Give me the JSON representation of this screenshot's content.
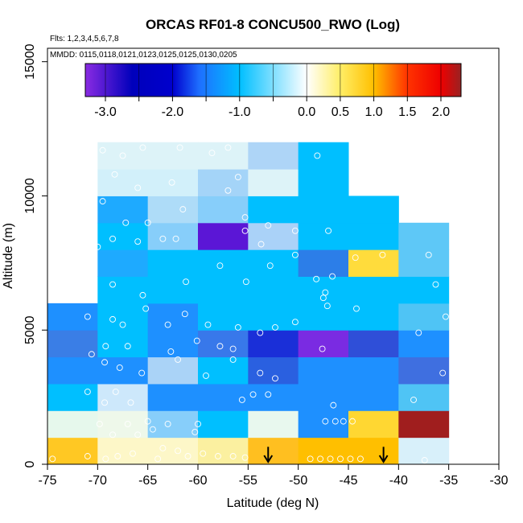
{
  "chart_data": {
    "type": "heatmap",
    "title": "ORCAS RF01-8 CONCU500_RWO (Log)",
    "flights_label": "Flts: 1,2,3,4,5,6,7,8",
    "dates_label": "MMDD: 0115,0118,0121,0123,0125,0125,0130,0205",
    "xlabel": "Latitude (deg N)",
    "ylabel": "Altitude (m)",
    "xlim": [
      -75,
      -30
    ],
    "ylim": [
      0,
      15500
    ],
    "x_ticks": [
      -75,
      -70,
      -65,
      -60,
      -55,
      -50,
      -45,
      -40,
      -35,
      -30
    ],
    "x_tick_labels": [
      "-75",
      "-70",
      "-65",
      "-60",
      "-55",
      "-50",
      "-45",
      "-40",
      "-35",
      "-30"
    ],
    "y_ticks": [
      0,
      5000,
      10000,
      15000
    ],
    "y_tick_labels": [
      "0",
      "5000",
      "10000",
      "15000"
    ],
    "colorbar": {
      "range": [
        -3.3,
        2.3
      ],
      "ticks": [
        -3.0,
        -2.0,
        -1.0,
        0.0,
        0.5,
        1.0,
        1.5,
        2.0
      ],
      "tick_labels": [
        "-3.0",
        "-2.0",
        "-1.0",
        "0.0",
        "0.5",
        "1.0",
        "1.5",
        "2.0"
      ],
      "stops": [
        {
          "v": -3.3,
          "c": "#8a2be2"
        },
        {
          "v": -2.6,
          "c": "#0000bb"
        },
        {
          "v": -2.0,
          "c": "#0000cd"
        },
        {
          "v": -1.6,
          "c": "#1e6fff"
        },
        {
          "v": -1.0,
          "c": "#00bfff"
        },
        {
          "v": -0.5,
          "c": "#7fdfff"
        },
        {
          "v": 0.0,
          "c": "#ffffff"
        },
        {
          "v": 0.5,
          "c": "#ffee66"
        },
        {
          "v": 1.0,
          "c": "#ffbf00"
        },
        {
          "v": 1.5,
          "c": "#ff3300"
        },
        {
          "v": 2.0,
          "c": "#ee0000"
        },
        {
          "v": 2.3,
          "c": "#992222"
        }
      ]
    },
    "bin_size": {
      "lat": 5,
      "alt": 1000
    },
    "cells": [
      {
        "lat": -75,
        "alt": 0,
        "color": "#ffc823"
      },
      {
        "lat": -75,
        "alt": 1000,
        "color": "#e6f8ec"
      },
      {
        "lat": -75,
        "alt": 2000,
        "color": "#00bfff"
      },
      {
        "lat": -75,
        "alt": 3000,
        "color": "#1e90ff"
      },
      {
        "lat": -75,
        "alt": 4000,
        "color": "#3378e8"
      },
      {
        "lat": -75,
        "alt": 5000,
        "color": "#1e90ff"
      },
      {
        "lat": -70,
        "alt": 0,
        "color": "#fdf7c8"
      },
      {
        "lat": -70,
        "alt": 1000,
        "color": "#87cefa"
      },
      {
        "lat": -70,
        "alt": 2000,
        "color": "#cde8fb"
      },
      {
        "lat": -70,
        "alt": 3000,
        "color": "#1e90ff"
      },
      {
        "lat": -70,
        "alt": 4000,
        "color": "#00bfff"
      },
      {
        "lat": -70,
        "alt": 5000,
        "color": "#00bfff"
      },
      {
        "lat": -70,
        "alt": 6000,
        "color": "#00bfff"
      },
      {
        "lat": -70,
        "alt": 7000,
        "color": "#1eaaff"
      },
      {
        "lat": -70,
        "alt": 8000,
        "color": "#00bfff"
      },
      {
        "lat": -70,
        "alt": 9000,
        "color": "#1eaaff"
      },
      {
        "lat": -70,
        "alt": 10000,
        "color": "#d2f0fa"
      },
      {
        "lat": -70,
        "alt": 11000,
        "color": "#ddf3f8"
      },
      {
        "lat": -65,
        "alt": 0,
        "color": "#fdf7c8"
      },
      {
        "lat": -65,
        "alt": 1000,
        "color": "#33b5f5"
      },
      {
        "lat": -65,
        "alt": 2000,
        "color": "#1e90ff"
      },
      {
        "lat": -65,
        "alt": 3000,
        "color": "#1e90ff"
      },
      {
        "lat": -65,
        "alt": 4000,
        "color": "#2a88f2"
      },
      {
        "lat": -65,
        "alt": 5000,
        "color": "#1e90ff"
      },
      {
        "lat": -65,
        "alt": 6000,
        "color": "#00bfff"
      },
      {
        "lat": -65,
        "alt": 7000,
        "color": "#00bfff"
      },
      {
        "lat": -65,
        "alt": 8000,
        "color": "#87cefa"
      },
      {
        "lat": -65,
        "alt": 9000,
        "color": "#aedcf8"
      },
      {
        "lat": -65,
        "alt": 10000,
        "color": "#d2f0fa"
      },
      {
        "lat": -65,
        "alt": 11000,
        "color": "#ddf3f8"
      },
      {
        "lat": -60,
        "alt": 0,
        "color": "#fbf3a6"
      },
      {
        "lat": -60,
        "alt": 1000,
        "color": "#00bfff"
      },
      {
        "lat": -60,
        "alt": 2000,
        "color": "#1e90ff"
      },
      {
        "lat": -60,
        "alt": 3000,
        "color": "#aad3f7"
      },
      {
        "lat": -60,
        "alt": 4000,
        "color": "#00bfff"
      },
      {
        "lat": -60,
        "alt": 5000,
        "color": "#00bfff"
      },
      {
        "lat": -60,
        "alt": 6000,
        "color": "#00bfff"
      },
      {
        "lat": -60,
        "alt": 7000,
        "color": "#00bfff"
      },
      {
        "lat": -60,
        "alt": 8000,
        "color": "#87cefa"
      },
      {
        "lat": -60,
        "alt": 9000,
        "color": "#a4d4f8"
      },
      {
        "lat": -60,
        "alt": 10000,
        "color": "#ddf3f8"
      },
      {
        "lat": -60,
        "alt": 11000,
        "color": "#aed5f7"
      },
      {
        "lat": -55,
        "alt": 0,
        "color": "#ffbf00"
      },
      {
        "lat": -55,
        "alt": 1000,
        "color": "#e6f8ec"
      },
      {
        "lat": -55,
        "alt": 2000,
        "color": "#1e90ff"
      },
      {
        "lat": -55,
        "alt": 3000,
        "color": "#2c69e6"
      },
      {
        "lat": -55,
        "alt": 4000,
        "color": "#a7cff7"
      },
      {
        "lat": -55,
        "alt": 5000,
        "color": "#00bfff"
      },
      {
        "lat": -55,
        "alt": 6000,
        "color": "#00bfff"
      },
      {
        "lat": -55,
        "alt": 7000,
        "color": "#00bfff"
      },
      {
        "lat": -55,
        "alt": 8000,
        "color": "#b3daf8"
      },
      {
        "lat": -55,
        "alt": 9000,
        "color": "#00bfff"
      },
      {
        "lat": -55,
        "alt": 10000,
        "color": "#00bfff"
      },
      {
        "lat": -55,
        "alt": 11000,
        "color": "#00bfff"
      },
      {
        "lat": -50,
        "alt": 0,
        "color": "#ffbf00"
      },
      {
        "lat": -50,
        "alt": 1000,
        "color": "#1e90ff"
      },
      {
        "lat": -50,
        "alt": 2000,
        "color": "#1e90ff"
      },
      {
        "lat": -50,
        "alt": 3000,
        "color": "#1e90ff"
      },
      {
        "lat": -50,
        "alt": 4000,
        "color": "#00bfff"
      },
      {
        "lat": -50,
        "alt": 5000,
        "color": "#00bfff"
      },
      {
        "lat": -50,
        "alt": 6000,
        "color": "#00bfff"
      },
      {
        "lat": -50,
        "alt": 7000,
        "color": "#00bfff"
      },
      {
        "lat": -50,
        "alt": 8000,
        "color": "#00bfff"
      },
      {
        "lat": -50,
        "alt": 9000,
        "color": "#00bfff"
      },
      {
        "lat": -50,
        "alt": 10000,
        "color": "#00bfff"
      },
      {
        "lat": -50,
        "alt": 11000,
        "color": "#00bfff"
      },
      {
        "lat": -45,
        "alt": 0,
        "color": "#ffbf00"
      },
      {
        "lat": -45,
        "alt": 1000,
        "color": "#1e90ff"
      },
      {
        "lat": -45,
        "alt": 2000,
        "color": "#1e90ff"
      },
      {
        "lat": -45,
        "alt": 3000,
        "color": "#1e90ff"
      },
      {
        "lat": -45,
        "alt": 4000,
        "color": "#3070e0"
      },
      {
        "lat": -45,
        "alt": 5000,
        "color": "#00bfff"
      },
      {
        "lat": -45,
        "alt": 6000,
        "color": "#00bfff"
      },
      {
        "lat": -45,
        "alt": 7000,
        "color": "#00bfff"
      },
      {
        "lat": -45,
        "alt": 8000,
        "color": "#00bfff"
      },
      {
        "lat": -45,
        "alt": 9000,
        "color": "#00bfff"
      },
      {
        "lat": -40,
        "alt": 0,
        "color": "#d8f0fa"
      },
      {
        "lat": -40,
        "alt": 1000,
        "color": "#a01e1e"
      },
      {
        "lat": -40,
        "alt": 2000,
        "color": "#4fc4f5"
      },
      {
        "lat": -40,
        "alt": 3000,
        "color": "#3f6fe0"
      },
      {
        "lat": -40,
        "alt": 4000,
        "color": "#1e90ff"
      },
      {
        "lat": -40,
        "alt": 5000,
        "color": "#4fc4f5"
      },
      {
        "lat": -40,
        "alt": 6000,
        "color": "#00bfff"
      },
      {
        "lat": -40,
        "alt": 7000,
        "color": "#5ec8f7"
      },
      {
        "lat": -40,
        "alt": 8000,
        "color": "#ffdc3c"
      }
    ],
    "overrides": [
      {
        "lat": -75,
        "alt": 4000,
        "color": "#3a7ee6"
      },
      {
        "lat": -70,
        "alt": 1000,
        "color": "#eef8ea"
      },
      {
        "lat": -65,
        "alt": 1000,
        "color": "#00bfff"
      },
      {
        "lat": -65,
        "alt": 1000,
        "color": "#87cefa"
      },
      {
        "lat": -60,
        "alt": 0,
        "color": "#fbf0a0"
      },
      {
        "lat": -55,
        "alt": 0,
        "color": "#ffbf20"
      },
      {
        "lat": -55,
        "alt": 1000,
        "color": "#e8f8ee"
      },
      {
        "lat": -55,
        "alt": 3000,
        "color": "#2a60e0"
      },
      {
        "lat": -55,
        "alt": 4000,
        "color": "#1a2fd8"
      },
      {
        "lat": -55,
        "alt": 5000,
        "color": "#00bfff"
      },
      {
        "lat": -55,
        "alt": 8000,
        "color": "#aad2f8"
      },
      {
        "lat": -60,
        "alt": 8000,
        "color": "#5b16d6"
      },
      {
        "lat": -60,
        "alt": 9000,
        "color": "#87cefa"
      },
      {
        "lat": -60,
        "alt": 4000,
        "color": "#3878ea"
      },
      {
        "lat": -60,
        "alt": 3000,
        "color": "#00bfff"
      },
      {
        "lat": -65,
        "alt": 4000,
        "color": "#1e90ff"
      },
      {
        "lat": -65,
        "alt": 3000,
        "color": "#aad3f7"
      },
      {
        "lat": -60,
        "alt": 2000,
        "color": "#1e90ff"
      },
      {
        "lat": -60,
        "alt": 11000,
        "color": "#ddf3f8"
      },
      {
        "lat": -55,
        "alt": 11000,
        "color": "#aed5f7"
      },
      {
        "lat": -55,
        "alt": 10000,
        "color": "#ddf3f8"
      },
      {
        "lat": -60,
        "alt": 10000,
        "color": "#a4d4f8"
      },
      {
        "lat": -55,
        "alt": 9000,
        "color": "#00bfff"
      },
      {
        "lat": -50,
        "alt": 4000,
        "color": "#7a2be2"
      },
      {
        "lat": -50,
        "alt": 5000,
        "color": "#00bfff"
      },
      {
        "lat": -50,
        "alt": 6000,
        "color": "#00bfff"
      },
      {
        "lat": -50,
        "alt": 7000,
        "color": "#2c7ee8"
      },
      {
        "lat": -50,
        "alt": 1000,
        "color": "#1e90ff"
      },
      {
        "lat": -45,
        "alt": 1000,
        "color": "#ffd732"
      },
      {
        "lat": -45,
        "alt": 4000,
        "color": "#2f4fd8"
      },
      {
        "lat": -45,
        "alt": 7000,
        "color": "#ffdc3c"
      },
      {
        "lat": -40,
        "alt": 7000,
        "color": "#5ec8f7"
      },
      {
        "lat": -40,
        "alt": 8000,
        "color": "#5ec8f7"
      },
      {
        "lat": -40,
        "alt": 1000,
        "color": "#a01e1e"
      },
      {
        "lat": -40,
        "alt": 0,
        "color": "#d8f0fa"
      },
      {
        "lat": -40,
        "alt": 3000,
        "color": "#3f6fe0"
      },
      {
        "lat": -40,
        "alt": 2000,
        "color": "#4fc4f5"
      },
      {
        "lat": -40,
        "alt": 6000,
        "color": "#00bfff"
      },
      {
        "lat": -40,
        "alt": 5000,
        "color": "#4fc4f5"
      }
    ],
    "points": [
      [
        -74.5,
        0.2
      ],
      [
        -71.0,
        0.3
      ],
      [
        -69.2,
        0.2
      ],
      [
        -68.0,
        0.3
      ],
      [
        -66.5,
        0.4
      ],
      [
        -64.0,
        0.2
      ],
      [
        -63.5,
        0.6
      ],
      [
        -62.0,
        0.5
      ],
      [
        -61.0,
        0.3
      ],
      [
        -59.5,
        0.4
      ],
      [
        -58.0,
        0.3
      ],
      [
        -56.5,
        0.3
      ],
      [
        -55.3,
        0.25
      ],
      [
        -48.8,
        0.2
      ],
      [
        -47.8,
        0.2
      ],
      [
        -46.8,
        0.2
      ],
      [
        -45.8,
        0.2
      ],
      [
        -44.8,
        0.2
      ],
      [
        -43.8,
        0.2
      ],
      [
        -37.4,
        0.15
      ],
      [
        -69.8,
        1.5
      ],
      [
        -68.5,
        1.1
      ],
      [
        -67.0,
        1.5
      ],
      [
        -66.0,
        1.1
      ],
      [
        -65.0,
        1.6
      ],
      [
        -64.5,
        1.3
      ],
      [
        -63.0,
        1.5
      ],
      [
        -60.3,
        1.2
      ],
      [
        -60.0,
        1.5
      ],
      [
        -47.3,
        1.6
      ],
      [
        -46.3,
        1.6
      ],
      [
        -45.5,
        1.6
      ],
      [
        -44.6,
        1.6
      ],
      [
        -71.0,
        2.7
      ],
      [
        -69.3,
        2.3
      ],
      [
        -68.2,
        2.7
      ],
      [
        -66.7,
        2.3
      ],
      [
        -55.6,
        2.4
      ],
      [
        -54.5,
        2.6
      ],
      [
        -53.0,
        2.6
      ],
      [
        -46.5,
        2.2
      ],
      [
        -38.5,
        2.4
      ],
      [
        -69.3,
        3.8
      ],
      [
        -67.8,
        3.6
      ],
      [
        -65.6,
        3.4
      ],
      [
        -62.0,
        3.9
      ],
      [
        -59.2,
        3.3
      ],
      [
        -56.5,
        3.9
      ],
      [
        -53.8,
        3.4
      ],
      [
        -52.3,
        3.2
      ],
      [
        -35.6,
        3.4
      ],
      [
        -69.2,
        4.4
      ],
      [
        -70.6,
        4.1
      ],
      [
        -67.0,
        4.4
      ],
      [
        -62.7,
        4.2
      ],
      [
        -60.1,
        4.6
      ],
      [
        -57.8,
        4.4
      ],
      [
        -56.5,
        4.3
      ],
      [
        -53.8,
        4.9
      ],
      [
        -52.3,
        5.1
      ],
      [
        -47.6,
        4.3
      ],
      [
        -38.0,
        4.9
      ],
      [
        -71.0,
        5.5
      ],
      [
        -68.5,
        5.4
      ],
      [
        -67.5,
        5.2
      ],
      [
        -65.2,
        5.8
      ],
      [
        -63.0,
        5.2
      ],
      [
        -61.3,
        5.6
      ],
      [
        -59.0,
        5.2
      ],
      [
        -56.0,
        5.1
      ],
      [
        -50.3,
        5.3
      ],
      [
        -47.1,
        5.9
      ],
      [
        -44.2,
        5.8
      ],
      [
        -35.3,
        5.5
      ],
      [
        -72.5,
        7.0
      ],
      [
        -71.0,
        6.6
      ],
      [
        -68.5,
        6.7
      ],
      [
        -65.5,
        6.3
      ],
      [
        -61.2,
        6.8
      ],
      [
        -57.8,
        7.4
      ],
      [
        -55.2,
        6.8
      ],
      [
        -52.8,
        7.4
      ],
      [
        -48.2,
        6.9
      ],
      [
        -47.5,
        6.2
      ],
      [
        -47.3,
        6.4
      ],
      [
        -46.6,
        7.0
      ],
      [
        -44.3,
        7.7
      ],
      [
        -41.6,
        7.8
      ],
      [
        -37.0,
        7.8
      ],
      [
        -36.3,
        6.7
      ],
      [
        -66.0,
        8.3
      ],
      [
        -70.0,
        8.1
      ],
      [
        -68.5,
        8.4
      ],
      [
        -63.5,
        8.4
      ],
      [
        -62.2,
        8.4
      ],
      [
        -55.3,
        8.7
      ],
      [
        -53.7,
        8.2
      ],
      [
        -50.3,
        8.7
      ],
      [
        -50.3,
        7.8
      ],
      [
        -47.0,
        8.7
      ],
      [
        -69.5,
        9.8
      ],
      [
        -67.2,
        9.0
      ],
      [
        -65.0,
        9.0
      ],
      [
        -61.5,
        9.5
      ],
      [
        -55.3,
        9.2
      ],
      [
        -53.0,
        8.9
      ],
      [
        -68.3,
        10.8
      ],
      [
        -66.0,
        10.3
      ],
      [
        -62.6,
        10.5
      ],
      [
        -57.0,
        10.2
      ],
      [
        -56.0,
        10.7
      ],
      [
        -69.5,
        11.7
      ],
      [
        -67.5,
        11.5
      ],
      [
        -65.5,
        11.8
      ],
      [
        -61.8,
        11.8
      ],
      [
        -58.6,
        11.6
      ],
      [
        -57.0,
        11.8
      ],
      [
        -48.1,
        11.5
      ]
    ],
    "arrows": [
      {
        "lat": -53.0,
        "label": "arrow"
      },
      {
        "lat": -41.5,
        "label": "arrow"
      }
    ]
  }
}
